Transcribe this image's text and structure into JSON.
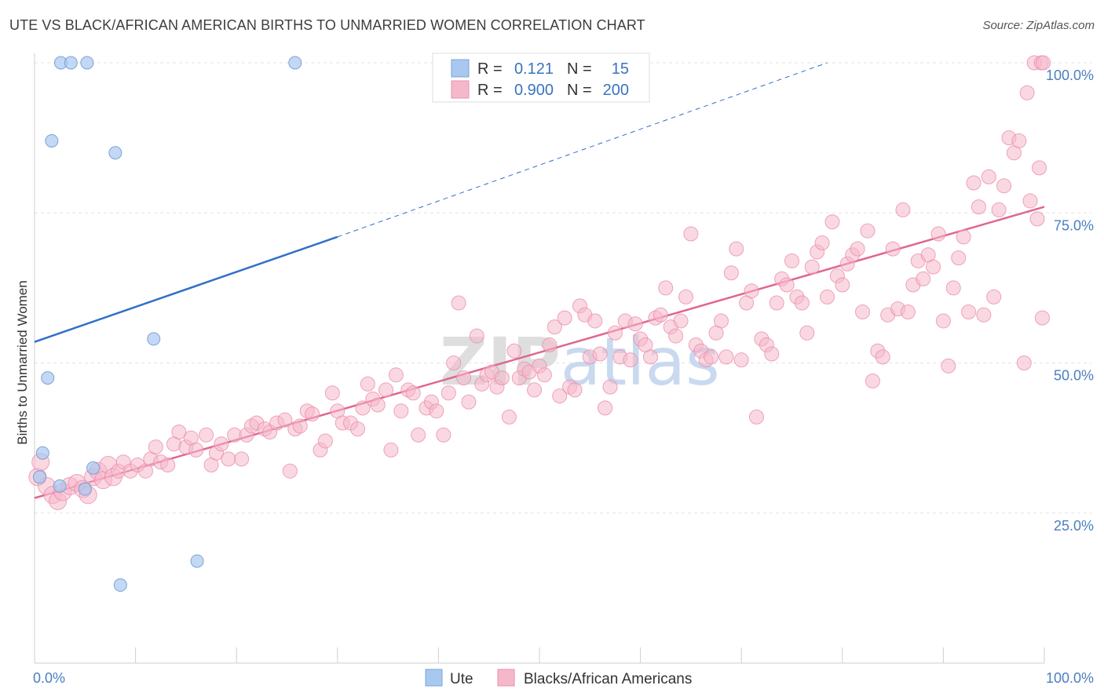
{
  "title": "UTE VS BLACK/AFRICAN AMERICAN BIRTHS TO UNMARRIED WOMEN CORRELATION CHART",
  "source": "Source: ZipAtlas.com",
  "watermark": "ZIPatlas",
  "legend": {
    "rows": [
      {
        "r_label": "R =",
        "r_value": "0.121",
        "n_label": "N =",
        "n_value": "15",
        "color": "#a9c8ef"
      },
      {
        "r_label": "R =",
        "r_value": "0.900",
        "n_label": "N =",
        "n_value": "200",
        "color": "#f5b8cb"
      }
    ]
  },
  "chart_data": {
    "type": "scatter",
    "title": "UTE VS BLACK/AFRICAN AMERICAN BIRTHS TO UNMARRIED WOMEN CORRELATION CHART",
    "xlabel": "",
    "ylabel": "Births to Unmarried Women",
    "xlim": [
      0,
      100
    ],
    "ylim": [
      0,
      100
    ],
    "x_tick_labels": [
      "0.0%",
      "100.0%"
    ],
    "y_tick_labels": [
      "25.0%",
      "50.0%",
      "75.0%",
      "100.0%"
    ],
    "y_ticks": [
      25,
      50,
      75,
      100
    ],
    "grid": true,
    "legend_position": "bottom",
    "series": [
      {
        "name": "Ute",
        "color": "#a9c8ef",
        "stroke": "#7aa3d8",
        "line_color": "#3070c8",
        "trend": {
          "x0": 0,
          "y0": 53.5,
          "x1": 30,
          "y1": 71,
          "x_dash_end": 78.5,
          "y_dash_end": 100
        },
        "points": [
          [
            2.6,
            100
          ],
          [
            3.6,
            100
          ],
          [
            5.2,
            100
          ],
          [
            25.8,
            100
          ],
          [
            1.7,
            87
          ],
          [
            8.0,
            85
          ],
          [
            11.8,
            54
          ],
          [
            1.3,
            47.5
          ],
          [
            0.8,
            35
          ],
          [
            0.5,
            31
          ],
          [
            2.5,
            29.5
          ],
          [
            5.0,
            29
          ],
          [
            5.8,
            32.5
          ],
          [
            16.1,
            17
          ],
          [
            8.5,
            13
          ]
        ]
      },
      {
        "name": "Blacks/African Americans",
        "color": "#f5b8cb",
        "stroke": "#e88fac",
        "line_color": "#e0668f",
        "trend": {
          "x0": 0,
          "y0": 27.5,
          "x1": 100,
          "y1": 76
        },
        "points": [
          [
            0.3,
            31
          ],
          [
            0.6,
            33.5
          ],
          [
            1.2,
            29.5
          ],
          [
            1.8,
            28
          ],
          [
            2.3,
            27
          ],
          [
            2.8,
            28.5
          ],
          [
            3.5,
            29.5
          ],
          [
            4.2,
            30
          ],
          [
            4.8,
            29
          ],
          [
            5.3,
            28
          ],
          [
            5.8,
            31
          ],
          [
            6.3,
            32
          ],
          [
            6.8,
            30.5
          ],
          [
            7.3,
            33
          ],
          [
            7.8,
            31
          ],
          [
            8.3,
            32
          ],
          [
            8.8,
            33.5
          ],
          [
            9.5,
            32
          ],
          [
            10.2,
            33
          ],
          [
            11.0,
            32
          ],
          [
            11.5,
            34
          ],
          [
            12.0,
            36
          ],
          [
            12.5,
            33.5
          ],
          [
            13.2,
            33
          ],
          [
            13.8,
            36.5
          ],
          [
            14.3,
            38.5
          ],
          [
            15.0,
            36
          ],
          [
            15.5,
            37.5
          ],
          [
            16.0,
            35.5
          ],
          [
            17.0,
            38
          ],
          [
            17.5,
            33
          ],
          [
            18.0,
            35
          ],
          [
            18.5,
            36.5
          ],
          [
            19.2,
            34
          ],
          [
            19.8,
            38
          ],
          [
            20.5,
            34
          ],
          [
            21.0,
            38
          ],
          [
            21.5,
            39.5
          ],
          [
            22.0,
            40
          ],
          [
            22.8,
            39
          ],
          [
            23.3,
            38.5
          ],
          [
            24.0,
            40
          ],
          [
            24.8,
            40.5
          ],
          [
            25.3,
            32
          ],
          [
            25.8,
            39
          ],
          [
            26.3,
            39.5
          ],
          [
            27.0,
            42
          ],
          [
            27.5,
            41.5
          ],
          [
            28.3,
            35.5
          ],
          [
            28.8,
            37
          ],
          [
            29.5,
            45
          ],
          [
            30.0,
            42
          ],
          [
            30.5,
            40
          ],
          [
            31.3,
            40
          ],
          [
            32.0,
            39
          ],
          [
            32.5,
            42.5
          ],
          [
            33.0,
            46.5
          ],
          [
            33.5,
            44
          ],
          [
            34.0,
            43
          ],
          [
            34.8,
            45.5
          ],
          [
            35.3,
            35.5
          ],
          [
            35.8,
            48
          ],
          [
            36.3,
            42
          ],
          [
            37.0,
            45.5
          ],
          [
            37.5,
            45
          ],
          [
            38.0,
            38
          ],
          [
            38.8,
            42.5
          ],
          [
            39.3,
            43.5
          ],
          [
            39.8,
            42
          ],
          [
            40.5,
            38
          ],
          [
            41.0,
            45
          ],
          [
            41.5,
            50
          ],
          [
            42.0,
            60
          ],
          [
            42.5,
            47.5
          ],
          [
            43.0,
            43.5
          ],
          [
            43.8,
            54.5
          ],
          [
            44.3,
            46.5
          ],
          [
            44.8,
            48
          ],
          [
            45.3,
            48.5
          ],
          [
            45.8,
            46
          ],
          [
            46.3,
            47.5
          ],
          [
            47.0,
            41
          ],
          [
            47.5,
            52
          ],
          [
            48.0,
            47.5
          ],
          [
            48.5,
            49
          ],
          [
            49.0,
            48.5
          ],
          [
            49.5,
            45.5
          ],
          [
            50.0,
            49.5
          ],
          [
            50.5,
            48
          ],
          [
            51.0,
            53
          ],
          [
            51.5,
            56
          ],
          [
            52.0,
            44.5
          ],
          [
            52.5,
            57.5
          ],
          [
            53.0,
            46
          ],
          [
            53.5,
            45.5
          ],
          [
            54.0,
            59.5
          ],
          [
            54.5,
            58
          ],
          [
            55.0,
            51
          ],
          [
            55.5,
            57
          ],
          [
            56.0,
            51.5
          ],
          [
            56.5,
            42.5
          ],
          [
            57.0,
            46
          ],
          [
            57.5,
            55
          ],
          [
            58.0,
            51
          ],
          [
            58.5,
            57
          ],
          [
            59.0,
            50.5
          ],
          [
            59.5,
            56.5
          ],
          [
            60.0,
            54
          ],
          [
            60.5,
            53
          ],
          [
            61.0,
            51
          ],
          [
            61.5,
            57.5
          ],
          [
            62.0,
            58
          ],
          [
            62.5,
            62.5
          ],
          [
            63.0,
            56
          ],
          [
            63.5,
            54.5
          ],
          [
            64.0,
            57
          ],
          [
            64.5,
            61
          ],
          [
            65.0,
            71.5
          ],
          [
            65.5,
            53
          ],
          [
            66.0,
            52
          ],
          [
            66.5,
            50.5
          ],
          [
            67.0,
            51
          ],
          [
            67.5,
            55
          ],
          [
            68.0,
            57
          ],
          [
            68.5,
            51
          ],
          [
            69.0,
            65
          ],
          [
            69.5,
            69
          ],
          [
            70.0,
            50.5
          ],
          [
            70.5,
            60
          ],
          [
            71.0,
            62
          ],
          [
            71.5,
            41
          ],
          [
            72.0,
            54
          ],
          [
            72.5,
            53
          ],
          [
            73.0,
            51.5
          ],
          [
            73.5,
            60
          ],
          [
            74.0,
            64
          ],
          [
            74.5,
            63
          ],
          [
            75.0,
            67
          ],
          [
            75.5,
            61
          ],
          [
            76.0,
            60
          ],
          [
            76.5,
            55
          ],
          [
            77.0,
            66
          ],
          [
            77.5,
            68.5
          ],
          [
            78.0,
            70
          ],
          [
            78.5,
            61
          ],
          [
            79.0,
            73.5
          ],
          [
            79.5,
            64.5
          ],
          [
            80.0,
            63
          ],
          [
            80.5,
            66.5
          ],
          [
            81.0,
            68
          ],
          [
            81.5,
            69
          ],
          [
            82.0,
            58.5
          ],
          [
            82.5,
            72
          ],
          [
            83.0,
            47
          ],
          [
            83.5,
            52
          ],
          [
            84.0,
            51
          ],
          [
            84.5,
            58
          ],
          [
            85.0,
            69
          ],
          [
            85.5,
            59
          ],
          [
            86.0,
            75.5
          ],
          [
            86.5,
            58.5
          ],
          [
            87.0,
            63
          ],
          [
            87.5,
            67
          ],
          [
            88.0,
            64
          ],
          [
            88.5,
            68
          ],
          [
            89.0,
            66
          ],
          [
            89.5,
            71.5
          ],
          [
            90.0,
            57
          ],
          [
            90.5,
            49.5
          ],
          [
            91.0,
            62.5
          ],
          [
            91.5,
            67.5
          ],
          [
            92.0,
            71
          ],
          [
            92.5,
            58.5
          ],
          [
            93.0,
            80
          ],
          [
            93.5,
            76
          ],
          [
            94.0,
            58
          ],
          [
            94.5,
            81
          ],
          [
            95.0,
            61
          ],
          [
            95.5,
            75.5
          ],
          [
            96.0,
            79.5
          ],
          [
            96.5,
            87.5
          ],
          [
            97.0,
            85
          ],
          [
            97.5,
            87
          ],
          [
            98.0,
            50
          ],
          [
            98.3,
            95
          ],
          [
            98.6,
            77
          ],
          [
            99.0,
            100
          ],
          [
            99.3,
            74
          ],
          [
            99.5,
            82.5
          ],
          [
            99.7,
            100
          ],
          [
            99.8,
            57.5
          ],
          [
            99.9,
            100
          ]
        ]
      }
    ]
  }
}
